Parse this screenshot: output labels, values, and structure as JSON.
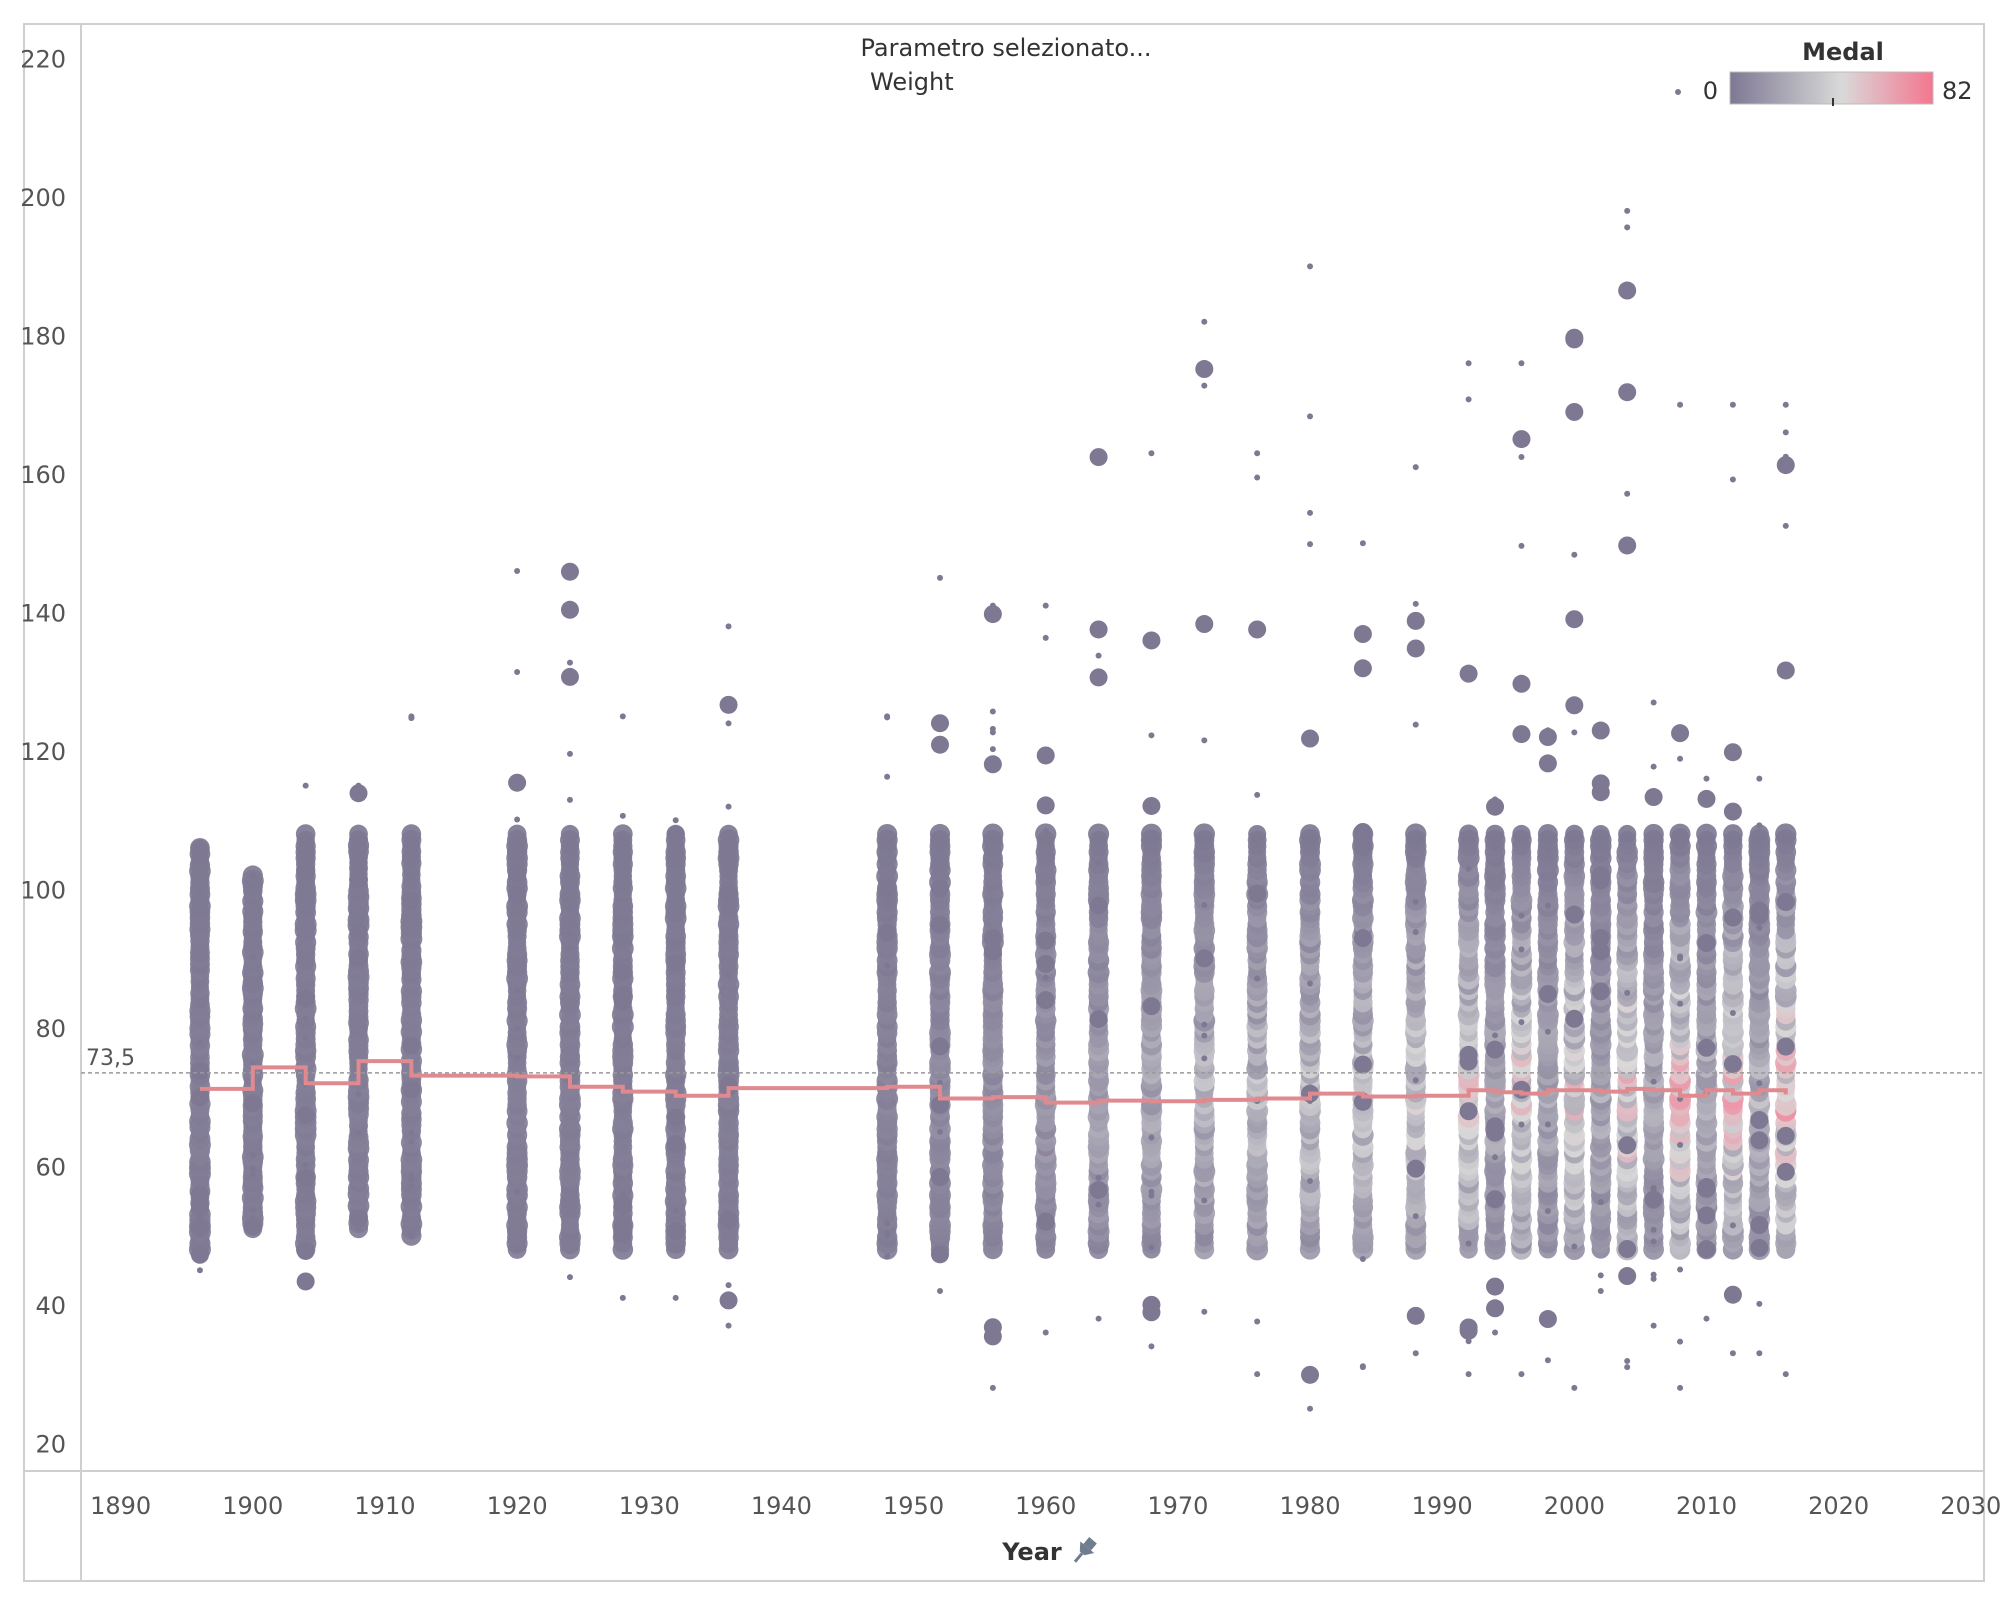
{
  "chart_data": {
    "type": "scatter",
    "title": "Parametro selezionato...",
    "subtitle": "Weight",
    "xlabel": "Year",
    "ylabel": "",
    "xlim": [
      1887,
      2031
    ],
    "ylim": [
      16,
      225
    ],
    "x_ticks": [
      1890,
      1900,
      1910,
      1920,
      1930,
      1940,
      1950,
      1960,
      1970,
      1980,
      1990,
      2000,
      2010,
      2020,
      2030
    ],
    "y_ticks": [
      20,
      40,
      60,
      80,
      100,
      120,
      140,
      160,
      180,
      200,
      220
    ],
    "grid": false,
    "reference_line": {
      "value": 73.5,
      "label": "73,5",
      "style": "dashed"
    },
    "legend": {
      "title": "Medal",
      "min_label": "0",
      "max_label": "82",
      "placement": "top-right",
      "colors": [
        "#7e7893",
        "#d9d9d9",
        "#f4768f"
      ]
    },
    "years": [
      1896,
      1900,
      1904,
      1908,
      1912,
      1920,
      1924,
      1928,
      1932,
      1936,
      1948,
      1952,
      1956,
      1960,
      1964,
      1968,
      1972,
      1976,
      1980,
      1984,
      1988,
      1992,
      1994,
      1996,
      1998,
      2000,
      2002,
      2004,
      2006,
      2008,
      2010,
      2012,
      2014,
      2016
    ],
    "weight_ranges": [
      [
        45,
        106
      ],
      [
        51,
        102
      ],
      [
        43,
        115
      ],
      [
        51,
        115
      ],
      [
        50,
        125
      ],
      [
        48,
        146
      ],
      [
        44,
        146
      ],
      [
        41,
        125
      ],
      [
        41,
        110
      ],
      [
        37,
        138
      ],
      [
        47,
        125
      ],
      [
        42,
        145
      ],
      [
        28,
        141
      ],
      [
        36,
        141
      ],
      [
        38,
        163
      ],
      [
        34,
        163
      ],
      [
        39,
        182
      ],
      [
        30,
        163
      ],
      [
        25,
        190
      ],
      [
        31,
        150
      ],
      [
        33,
        161
      ],
      [
        30,
        176
      ],
      [
        36,
        113
      ],
      [
        30,
        176
      ],
      [
        32,
        123
      ],
      [
        28,
        180
      ],
      [
        42,
        123
      ],
      [
        31,
        198
      ],
      [
        37,
        127
      ],
      [
        28,
        170
      ],
      [
        38,
        116
      ],
      [
        33,
        170
      ],
      [
        33,
        116
      ],
      [
        30,
        170
      ]
    ],
    "max_medal_share": [
      0.05,
      0.05,
      0.05,
      0.05,
      0.05,
      0.05,
      0.05,
      0.05,
      0.05,
      0.05,
      0.1,
      0.15,
      0.2,
      0.25,
      0.35,
      0.4,
      0.5,
      0.55,
      0.6,
      0.6,
      0.7,
      0.8,
      0.4,
      0.85,
      0.4,
      0.85,
      0.4,
      0.9,
      0.4,
      0.95,
      0.45,
      0.9,
      0.45,
      1.0
    ],
    "medal_series": {
      "name": "",
      "x": [
        1896,
        1900,
        1904,
        1908,
        1912,
        1920,
        1924,
        1928,
        1932,
        1936,
        1948,
        1952,
        1956,
        1960,
        1964,
        1968,
        1972,
        1976,
        1980,
        1984,
        1988,
        1992,
        1994,
        1996,
        1998,
        2000,
        2002,
        2004,
        2006,
        2008,
        2010,
        2012,
        2014,
        2016
      ],
      "y": [
        71.2,
        74.3,
        72.0,
        75.2,
        73.1,
        73.0,
        71.5,
        70.8,
        70.2,
        71.3,
        71.5,
        69.8,
        70.0,
        69.2,
        69.5,
        69.4,
        69.6,
        69.8,
        70.5,
        70.1,
        70.2,
        71.0,
        70.7,
        70.5,
        71.0,
        71.0,
        70.8,
        71.2,
        71.0,
        70.2,
        71.0,
        70.5,
        71.0,
        70.4
      ],
      "color": "#e08a90",
      "interpolation": "step"
    }
  }
}
